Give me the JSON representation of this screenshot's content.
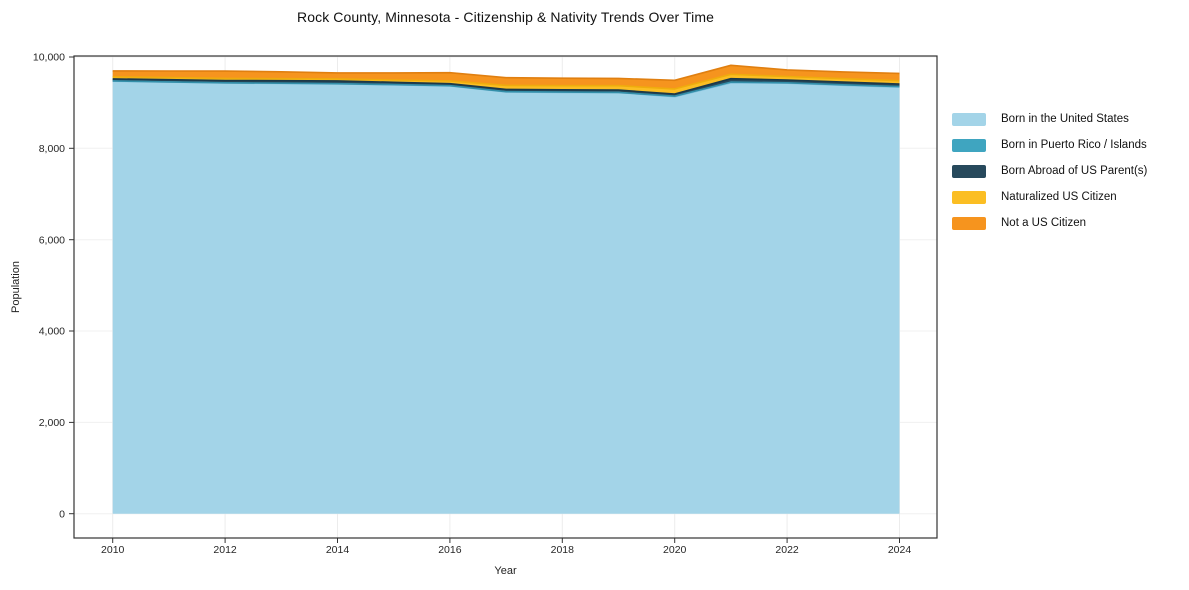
{
  "title": "Rock County, Minnesota - Citizenship & Nativity Trends Over Time",
  "chart_data": {
    "type": "area",
    "stacked": true,
    "title": "Rock County, Minnesota - Citizenship & Nativity Trends Over Time",
    "xlabel": "Year",
    "ylabel": "Population",
    "ylim": [
      0,
      10000
    ],
    "grid": true,
    "legend_position": "right-outside",
    "x": [
      2010,
      2011,
      2012,
      2013,
      2014,
      2015,
      2016,
      2017,
      2018,
      2019,
      2020,
      2021,
      2022,
      2023,
      2024
    ],
    "xticks": [
      2010,
      2012,
      2014,
      2016,
      2018,
      2020,
      2022,
      2024
    ],
    "xtick_labels": [
      "2010",
      "2012",
      "2014",
      "2016",
      "2018",
      "2020",
      "2022",
      "2024"
    ],
    "yticks": [
      0,
      2000,
      4000,
      6000,
      8000,
      10000
    ],
    "ytick_labels": [
      "0",
      "2,000",
      "4,000",
      "6,000",
      "8,000",
      "10,000"
    ],
    "series": [
      {
        "name": "Born in the United States",
        "color": "#A3D4E8",
        "edge": "#7FBEDB",
        "values": [
          9470,
          9450,
          9430,
          9420,
          9410,
          9390,
          9365,
          9235,
          9225,
          9220,
          9130,
          9435,
          9425,
          9380,
          9340
        ]
      },
      {
        "name": "Born in Puerto Rico / Islands",
        "color": "#3FA5C0",
        "edge": "#338FA9",
        "values": [
          5,
          5,
          5,
          5,
          5,
          5,
          5,
          5,
          5,
          5,
          10,
          15,
          10,
          10,
          10
        ]
      },
      {
        "name": "Born Abroad of US Parent(s)",
        "color": "#27495C",
        "edge": "#1C3848",
        "values": [
          45,
          48,
          50,
          55,
          60,
          50,
          45,
          50,
          50,
          50,
          50,
          75,
          60,
          60,
          58
        ]
      },
      {
        "name": "Naturalized US Citizen",
        "color": "#FBBE23",
        "edge": "#EFAC0D",
        "values": [
          45,
          45,
          45,
          45,
          45,
          50,
          60,
          88,
          90,
          95,
          110,
          95,
          75,
          73,
          73
        ]
      },
      {
        "name": "Not a US Citizen",
        "color": "#F6941E",
        "edge": "#E07F10",
        "values": [
          130,
          145,
          160,
          150,
          130,
          155,
          180,
          168,
          165,
          160,
          190,
          197,
          146,
          150,
          160
        ]
      }
    ]
  },
  "colors": {
    "grid_x": "#ececec",
    "grid_y": "#f0f0f0",
    "axis_border": "#333333",
    "tick_text": "#262626"
  }
}
